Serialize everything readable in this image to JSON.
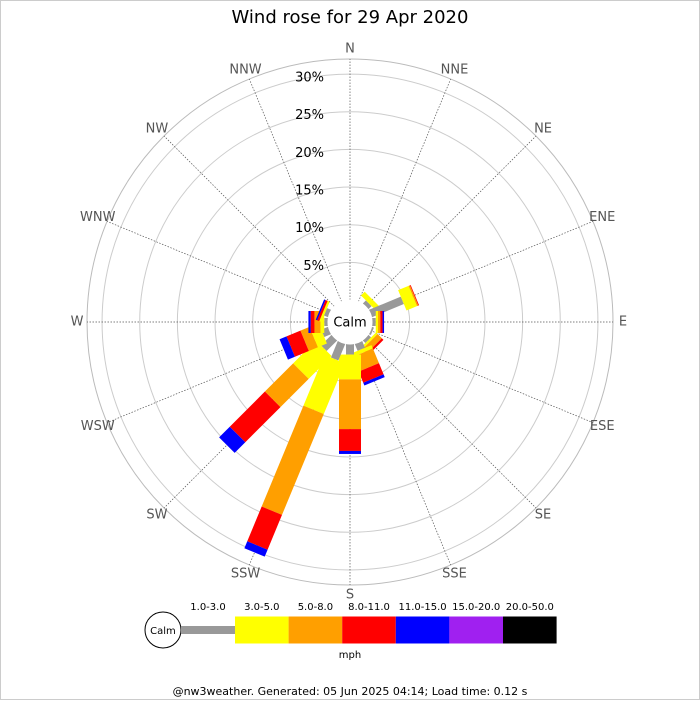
{
  "chart_data": {
    "type": "windrose",
    "title": "Wind rose for 29 Apr 2020",
    "calm_label": "Calm",
    "unit_label": "mph",
    "footer": "@nw3weather. Generated: 05 Jun 2025 04:14; Load time: 0.12 s",
    "categories": [
      "N",
      "NNE",
      "NE",
      "ENE",
      "E",
      "ESE",
      "SE",
      "SSE",
      "S",
      "SSW",
      "SW",
      "WSW",
      "W",
      "WNW",
      "NW",
      "NNW"
    ],
    "rlim": [
      0,
      32
    ],
    "rticks": [
      {
        "value": 5,
        "label": "5%"
      },
      {
        "value": 10,
        "label": "10%"
      },
      {
        "value": 15,
        "label": "15%"
      },
      {
        "value": 20,
        "label": "20%"
      },
      {
        "value": 25,
        "label": "25%"
      },
      {
        "value": 30,
        "label": "30%"
      }
    ],
    "series": [
      {
        "name": "1.0-3.0",
        "color": "#999999",
        "values": [
          0,
          0,
          0.6,
          4.6,
          0.5,
          0.3,
          0.5,
          1,
          1.4,
          2.4,
          2,
          1,
          0.5,
          0.6,
          0,
          0
        ]
      },
      {
        "name": "3.0-5.0",
        "color": "#ffff00",
        "values": [
          0,
          0,
          0.7,
          1.5,
          0.3,
          0,
          0.3,
          0.5,
          3.3,
          7.3,
          4.3,
          1.3,
          0.5,
          0.3,
          0,
          0
        ]
      },
      {
        "name": "5.0-8.0",
        "color": "#ff9f00",
        "values": [
          0,
          0,
          0,
          0.2,
          0.3,
          0,
          0.8,
          2.1,
          6.6,
          14.5,
          5.3,
          1.3,
          0.8,
          0,
          0,
          0
        ]
      },
      {
        "name": "8.0-11.0",
        "color": "#ff0000",
        "values": [
          0,
          0,
          0,
          0.1,
          0.3,
          0,
          0.3,
          1.6,
          2.9,
          5,
          6.6,
          2,
          0.5,
          0.3,
          0,
          0
        ]
      },
      {
        "name": "11.0-15.0",
        "color": "#0000ff",
        "values": [
          0,
          0,
          0,
          0,
          0.2,
          0,
          0,
          0.4,
          0.4,
          1,
          2,
          1,
          0.3,
          0.2,
          0,
          0
        ]
      },
      {
        "name": "15.0-20.0",
        "color": "#a020f0",
        "values": [
          0,
          0,
          0,
          0,
          0,
          0,
          0,
          0,
          0,
          0,
          0,
          0,
          0,
          0,
          0,
          0
        ]
      },
      {
        "name": "20.0-50.0",
        "color": "#000000",
        "values": [
          0,
          0,
          0,
          0,
          0,
          0,
          0,
          0,
          0,
          0,
          0,
          0,
          0,
          0,
          0,
          0
        ]
      }
    ]
  }
}
